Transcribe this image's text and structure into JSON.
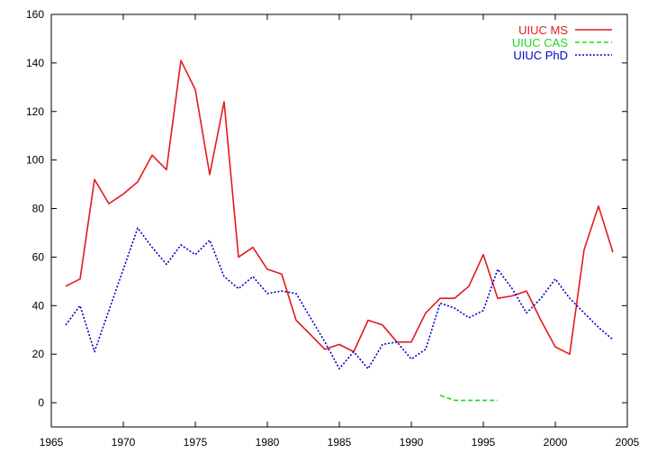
{
  "chart_data": {
    "type": "line",
    "title": "",
    "xlabel": "",
    "ylabel": "",
    "xlim": [
      1965,
      2005
    ],
    "ylim": [
      -10,
      160
    ],
    "xticks": [
      1965,
      1970,
      1975,
      1980,
      1985,
      1990,
      1995,
      2000,
      2005
    ],
    "yticks": [
      0,
      20,
      40,
      60,
      80,
      100,
      120,
      140,
      160
    ],
    "grid": false,
    "legend_position": "top-right",
    "series": [
      {
        "name": "UIUC MS",
        "color": "#e41a1c",
        "dash": "solid",
        "x": [
          1966,
          1967,
          1968,
          1969,
          1970,
          1971,
          1972,
          1973,
          1974,
          1975,
          1976,
          1977,
          1978,
          1979,
          1980,
          1981,
          1982,
          1983,
          1984,
          1985,
          1986,
          1987,
          1988,
          1989,
          1990,
          1991,
          1992,
          1993,
          1994,
          1995,
          1996,
          1997,
          1998,
          1999,
          2000,
          2001,
          2002,
          2003,
          2004
        ],
        "y": [
          48,
          51,
          92,
          82,
          86,
          91,
          102,
          96,
          141,
          129,
          94,
          124,
          60,
          64,
          55,
          53,
          34,
          28,
          22,
          24,
          21,
          34,
          32,
          25,
          25,
          37,
          43,
          43,
          48,
          61,
          43,
          44,
          46,
          34,
          23,
          20,
          63,
          81,
          62
        ]
      },
      {
        "name": "UIUC CAS",
        "color": "#1fd81f",
        "dash": "dashed",
        "x": [
          1992,
          1993,
          1994,
          1995,
          1996
        ],
        "y": [
          3,
          1,
          1,
          1,
          1
        ]
      },
      {
        "name": "UIUC PhD",
        "color": "#0000cc",
        "dash": "dotted",
        "x": [
          1966,
          1967,
          1968,
          1969,
          1970,
          1971,
          1972,
          1973,
          1974,
          1975,
          1976,
          1977,
          1978,
          1979,
          1980,
          1981,
          1982,
          1983,
          1984,
          1985,
          1986,
          1987,
          1988,
          1989,
          1990,
          1991,
          1992,
          1993,
          1994,
          1995,
          1996,
          1997,
          1998,
          1999,
          2000,
          2001,
          2002,
          2003,
          2004
        ],
        "y": [
          32,
          40,
          21,
          38,
          55,
          72,
          64,
          57,
          65,
          61,
          67,
          52,
          47,
          52,
          45,
          46,
          45,
          35,
          25,
          14,
          21,
          14,
          24,
          25,
          18,
          22,
          41,
          39,
          35,
          38,
          55,
          47,
          37,
          43,
          51,
          43,
          37,
          31,
          26
        ]
      }
    ]
  }
}
